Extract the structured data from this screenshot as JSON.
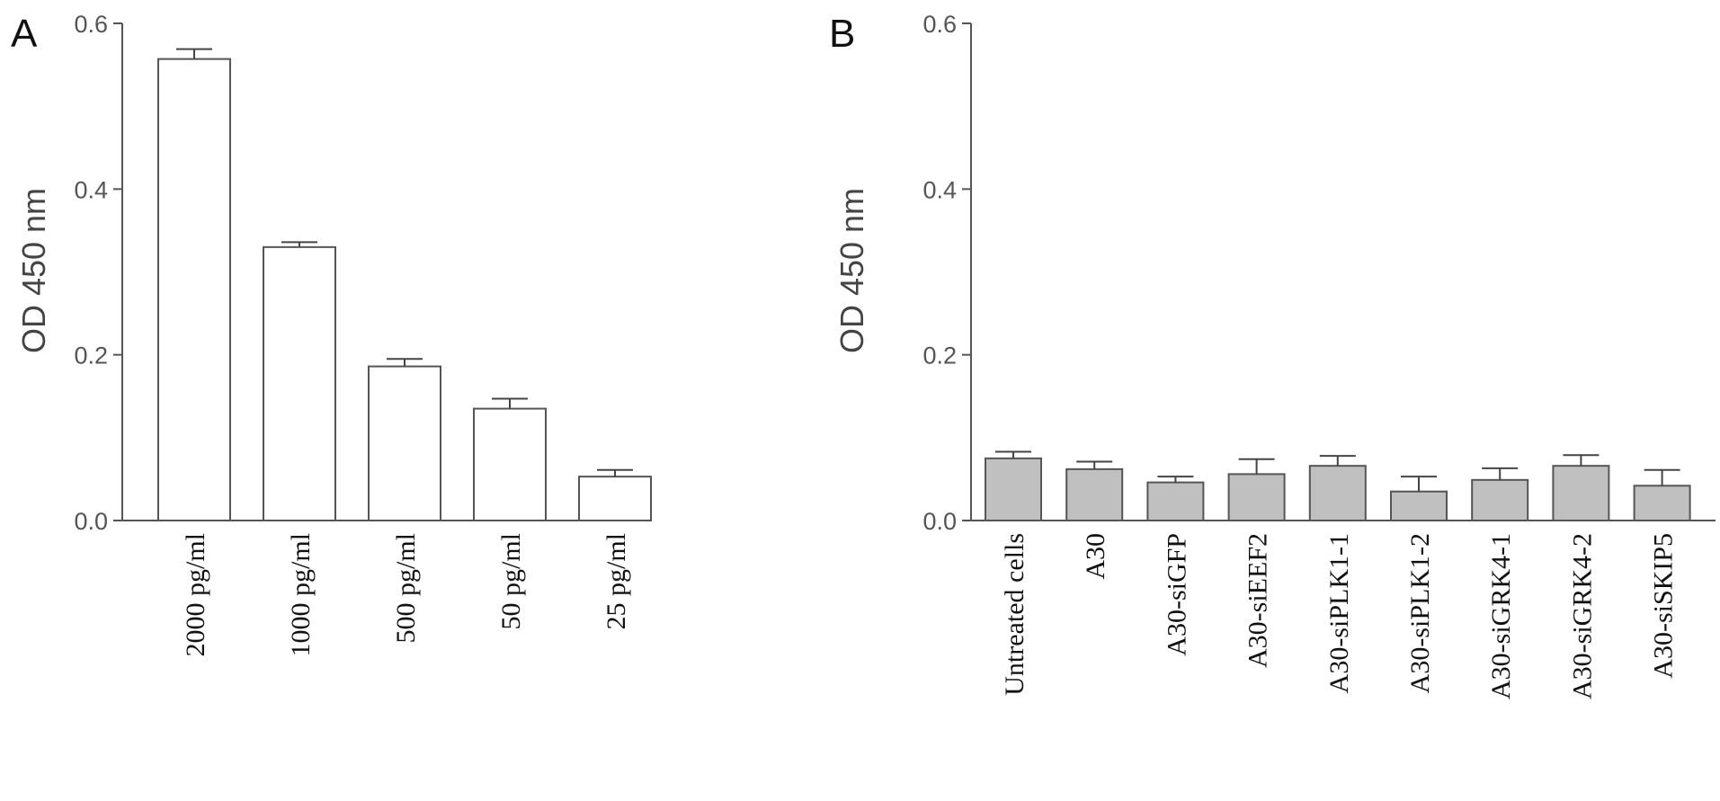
{
  "chart_data": [
    {
      "panel": "A",
      "type": "bar",
      "ylabel": "OD 450 nm",
      "ylim": [
        0,
        0.6
      ],
      "yticks": [
        "0.0",
        "0.2",
        "0.4",
        "0.6"
      ],
      "categories": [
        "2000 pg/ml",
        "1000 pg/ml",
        "500 pg/ml",
        "50 pg/ml",
        "25 pg/ml"
      ],
      "values": [
        0.557,
        0.33,
        0.186,
        0.135,
        0.053
      ],
      "errors": [
        0.012,
        0.006,
        0.009,
        0.012,
        0.008
      ],
      "bar_color": "#ffffff"
    },
    {
      "panel": "B",
      "type": "bar",
      "ylabel": "OD 450 nm",
      "ylim": [
        0,
        0.6
      ],
      "yticks": [
        "0.0",
        "0.2",
        "0.4",
        "0.6"
      ],
      "categories": [
        "Untreated cells",
        "A30",
        "A30-siGFP",
        "A30-siEEF2",
        "A30-siPLK1-1",
        "A30-siPLK1-2",
        "A30-siGRK4-1",
        "A30-siGRK4-2",
        "A30-siSKIP5"
      ],
      "values": [
        0.075,
        0.062,
        0.046,
        0.056,
        0.066,
        0.035,
        0.049,
        0.066,
        0.042
      ],
      "errors": [
        0.008,
        0.009,
        0.007,
        0.018,
        0.012,
        0.018,
        0.014,
        0.013,
        0.019
      ],
      "bar_color": "#c0c0c0"
    }
  ]
}
